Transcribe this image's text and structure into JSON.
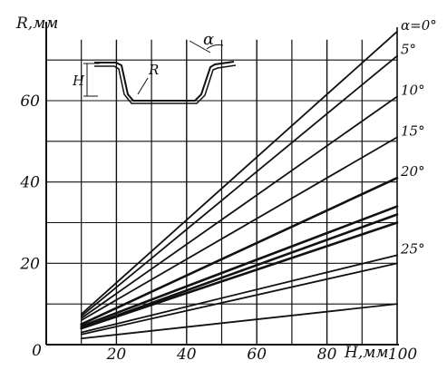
{
  "chart_data": {
    "type": "line",
    "ylabel": "R,мм",
    "xlabel": "H,мм",
    "xlim": [
      0,
      100
    ],
    "ylim": [
      0,
      75
    ],
    "x_ticks": [
      "0",
      "20",
      "40",
      "60",
      "80",
      "100"
    ],
    "y_ticks": [
      "20",
      "40",
      "60"
    ],
    "grid": true,
    "series": [
      {
        "name": "α=0°",
        "x": [
          10,
          100
        ],
        "y": [
          7.5,
          77
        ]
      },
      {
        "name": "5°",
        "x": [
          10,
          100
        ],
        "y": [
          7,
          71
        ]
      },
      {
        "name": "10°",
        "x": [
          10,
          100
        ],
        "y": [
          6.5,
          61
        ]
      },
      {
        "name": "15°",
        "x": [
          10,
          100
        ],
        "y": [
          6,
          51
        ]
      },
      {
        "name": "20°",
        "x": [
          10,
          100
        ],
        "y": [
          5,
          41
        ]
      },
      {
        "name": "",
        "x": [
          10,
          100
        ],
        "y": [
          4.5,
          34
        ]
      },
      {
        "name": "",
        "x": [
          10,
          100
        ],
        "y": [
          4,
          32
        ]
      },
      {
        "name": "",
        "x": [
          10,
          100
        ],
        "y": [
          4,
          30
        ]
      },
      {
        "name": "25°",
        "x": [
          10,
          100
        ],
        "y": [
          3,
          22
        ]
      },
      {
        "name": "",
        "x": [
          10,
          100
        ],
        "y": [
          2.5,
          20
        ]
      },
      {
        "name": "",
        "x": [
          10,
          100
        ],
        "y": [
          1.5,
          10
        ]
      }
    ],
    "inset": {
      "labels": [
        "H",
        "R",
        "α"
      ]
    },
    "colors": {
      "ink": "#111111",
      "background": "#ffffff"
    }
  }
}
